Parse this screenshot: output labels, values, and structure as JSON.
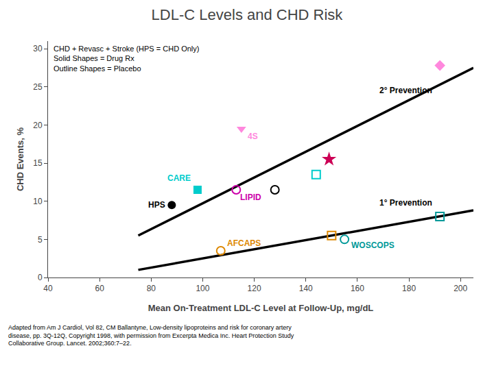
{
  "chart_data": {
    "type": "scatter",
    "title": "LDL-C Levels and CHD Risk",
    "xlabel": "Mean On-Treatment LDL-C Level at Follow-Up, mg/dL",
    "ylabel": "CHD Events, %",
    "xlim": [
      40,
      205
    ],
    "ylim": [
      0,
      31
    ],
    "xticks": [
      40,
      60,
      80,
      100,
      120,
      140,
      160,
      180,
      200
    ],
    "yticks": [
      0,
      5,
      10,
      15,
      20,
      25,
      30
    ],
    "grid": false,
    "series": [
      {
        "type": "line",
        "color": "black",
        "x": [
          75,
          205
        ],
        "values": [
          5.5,
          27.5
        ]
      },
      {
        "type": "line",
        "color": "black",
        "x": [
          75,
          205
        ],
        "values": [
          1.0,
          8.8
        ]
      },
      {
        "type": "scatter",
        "color": "black",
        "marker": "circle",
        "x": [
          88
        ],
        "values": [
          9.5
        ]
      },
      {
        "type": "scatter",
        "color": "#00cccc",
        "marker": "square",
        "x": [
          98
        ],
        "values": [
          11.5
        ]
      },
      {
        "type": "scatter",
        "color": "#cc00aa",
        "marker": "circle-open",
        "x": [
          113
        ],
        "values": [
          11.5
        ]
      },
      {
        "type": "scatter",
        "color": "#ff88dd",
        "marker": "triangle-down",
        "x": [
          115
        ],
        "values": [
          19.5
        ]
      },
      {
        "type": "scatter",
        "color": "black",
        "marker": "circle-open",
        "x": [
          128
        ],
        "values": [
          11.5
        ]
      },
      {
        "type": "scatter",
        "color": "#dd8800",
        "marker": "circle-open",
        "x": [
          107
        ],
        "values": [
          3.5
        ]
      },
      {
        "type": "scatter",
        "color": "#cc0055",
        "marker": "star",
        "x": [
          149
        ],
        "values": [
          15.5
        ]
      },
      {
        "type": "scatter",
        "color": "#009999",
        "marker": "circle-open",
        "x": [
          155
        ],
        "values": [
          5.0
        ]
      },
      {
        "type": "scatter",
        "color": "#dd8800",
        "marker": "square-open",
        "x": [
          150
        ],
        "values": [
          5.5
        ]
      },
      {
        "type": "scatter",
        "color": "#00cccc",
        "marker": "square-open",
        "x": [
          144
        ],
        "values": [
          13.5
        ]
      },
      {
        "type": "scatter",
        "color": "#ff88dd",
        "marker": "diamond",
        "x": [
          192
        ],
        "values": [
          27.8
        ]
      },
      {
        "type": "scatter",
        "color": "#009999",
        "marker": "square-open",
        "x": [
          192
        ],
        "values": [
          8.0
        ]
      }
    ],
    "annotations": [
      {
        "text": "2° Prevention",
        "x": 168,
        "y": 24.5,
        "color": "black",
        "anchor": "left"
      },
      {
        "text": "1° Prevention",
        "x": 168,
        "y": 9.8,
        "color": "black",
        "anchor": "left"
      },
      {
        "text": "HPS",
        "x": 86,
        "y": 9.5,
        "color": "black",
        "anchor": "right"
      },
      {
        "text": "CARE",
        "x": 96,
        "y": 13.0,
        "color": "#00cccc",
        "anchor": "right"
      },
      {
        "text": "LIPID",
        "x": 114,
        "y": 10.5,
        "color": "#cc00aa",
        "anchor": "left"
      },
      {
        "text": "4S",
        "x": 117,
        "y": 18.5,
        "color": "#ff88dd",
        "anchor": "left"
      },
      {
        "text": "AFCAPS",
        "x": 109,
        "y": 4.5,
        "color": "#dd8800",
        "anchor": "left"
      },
      {
        "text": "WOSCOPS",
        "x": 157,
        "y": 4.2,
        "color": "#009999",
        "anchor": "left"
      }
    ],
    "note": "CHD + Revasc + Stroke (HPS = CHD Only)\nSolid Shapes = Drug Rx\nOutline Shapes = Placebo",
    "footnote": "Adapted from Am J Cardiol, Vol 82, CM Ballantyne, Low-density lipoproteins and risk for coronary artery\ndisease, pp. 3Q-12Q, Copyright 1998, with permission from Excerpta Medica Inc. Heart Protection Study\nCollaborative Group. Lancet. 2002;360:7–22."
  }
}
